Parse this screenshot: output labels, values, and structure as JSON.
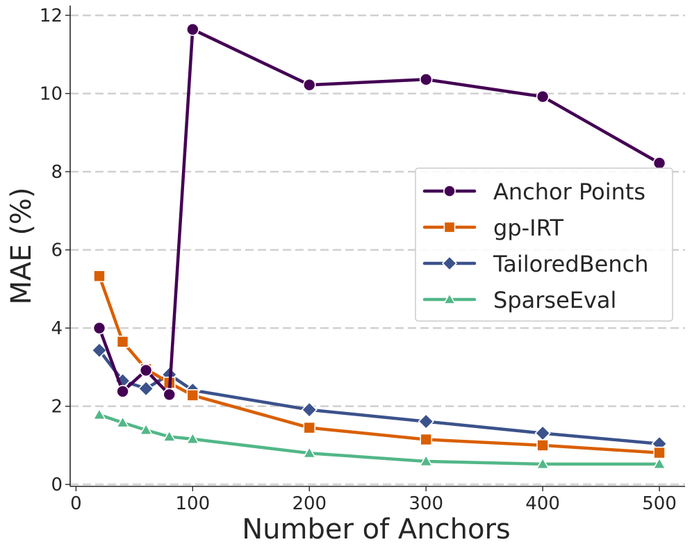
{
  "chart_data": {
    "type": "line",
    "title": "",
    "xlabel": "Number of Anchors",
    "ylabel": "MAE (%)",
    "xlim": [
      -5,
      522
    ],
    "ylim": [
      -0.05,
      12.25
    ],
    "xticks": [
      0,
      100,
      200,
      300,
      400,
      500
    ],
    "yticks": [
      0,
      2,
      4,
      6,
      8,
      10,
      12
    ],
    "grid": "horizontal dashed",
    "legend_position": "center-right",
    "series": [
      {
        "name": "Anchor Points",
        "color": "#440154",
        "marker": "circle",
        "x": [
          20,
          40,
          60,
          80,
          100,
          200,
          300,
          400,
          500
        ],
        "y": [
          4.0,
          2.38,
          2.92,
          2.3,
          11.64,
          10.22,
          10.36,
          9.92,
          8.22
        ]
      },
      {
        "name": "gp-IRT",
        "color": "#d95f02",
        "marker": "square",
        "x": [
          20,
          40,
          60,
          80,
          100,
          200,
          300,
          400,
          500
        ],
        "y": [
          5.33,
          3.65,
          2.95,
          2.6,
          2.28,
          1.45,
          1.15,
          1.0,
          0.81
        ]
      },
      {
        "name": "TailoredBench",
        "color": "#3b528b",
        "marker": "diamond",
        "x": [
          20,
          40,
          60,
          80,
          100,
          200,
          300,
          400,
          500
        ],
        "y": [
          3.43,
          2.65,
          2.45,
          2.81,
          2.41,
          1.91,
          1.61,
          1.31,
          1.04
        ]
      },
      {
        "name": "SparseEval",
        "color": "#52b788",
        "marker": "triangle",
        "x": [
          20,
          40,
          60,
          80,
          100,
          200,
          300,
          400,
          500
        ],
        "y": [
          1.78,
          1.58,
          1.39,
          1.22,
          1.16,
          0.8,
          0.59,
          0.52,
          0.52
        ]
      }
    ]
  }
}
